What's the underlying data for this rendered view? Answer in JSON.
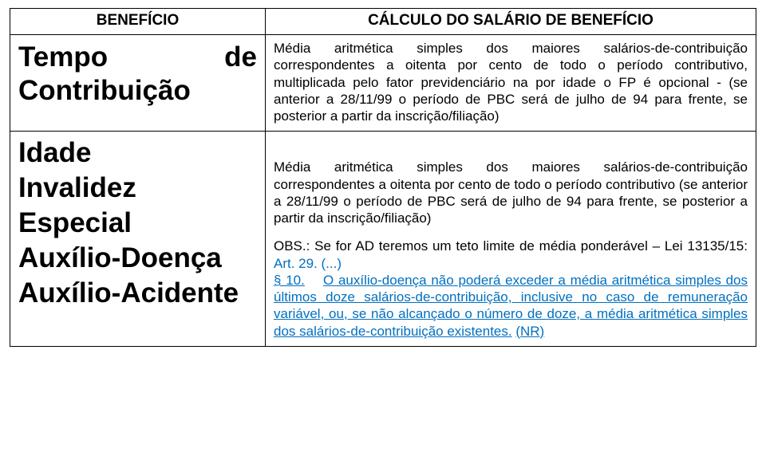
{
  "colors": {
    "text": "#000000",
    "link": "#0070c0",
    "border": "#000000",
    "background": "#ffffff"
  },
  "typography": {
    "body_font": "Arial",
    "header_size_pt": 14,
    "benefit_size_pt": 26,
    "calc_size_pt": 13
  },
  "headers": {
    "left": "BENEFÍCIO",
    "right": "CÁLCULO DO SALÁRIO DE BENEFÍCIO"
  },
  "row1": {
    "benefit_line1": "Tempo",
    "benefit_de": "de",
    "benefit_line2": "Contribuição",
    "calc": "Média aritmética simples dos maiores salários-de-contribuição correspondentes a oitenta por cento de todo o período contributivo, multiplicada pelo fator previdenciário na por idade o FP é opcional - (se anterior a 28/11/99 o período de PBC será de julho de 94 para frente, se posterior a partir da inscrição/filiação)"
  },
  "row2": {
    "benefits": {
      "b1": "Idade",
      "b2": "Invalidez",
      "b3": "Especial",
      "b4": "Auxílio-Doença",
      "b5": "Auxílio-Acidente"
    },
    "calc_main": "Média aritmética simples dos maiores salários-de-contribuição correspondentes a oitenta por cento de todo o período contributivo (se anterior a 28/11/99 o período de PBC será de julho de 94 para frente, se posterior a partir da inscrição/filiação)",
    "obs_prefix": "OBS.: Se for AD teremos um teto limite de média ponderável – Lei 13135/15: ",
    "obs_art": "Art. 29. (...)",
    "obs_para_num": "§ 10.",
    "obs_para_body": "O auxílio-doença não poderá exceder a média aritmética simples dos últimos doze salários-de-contribuição, inclusive no caso de remuneração variável, ou, se não alcançado o número de doze, a média aritmética simples dos salários-de-contribuição existentes.",
    "obs_nr": "(NR)"
  }
}
